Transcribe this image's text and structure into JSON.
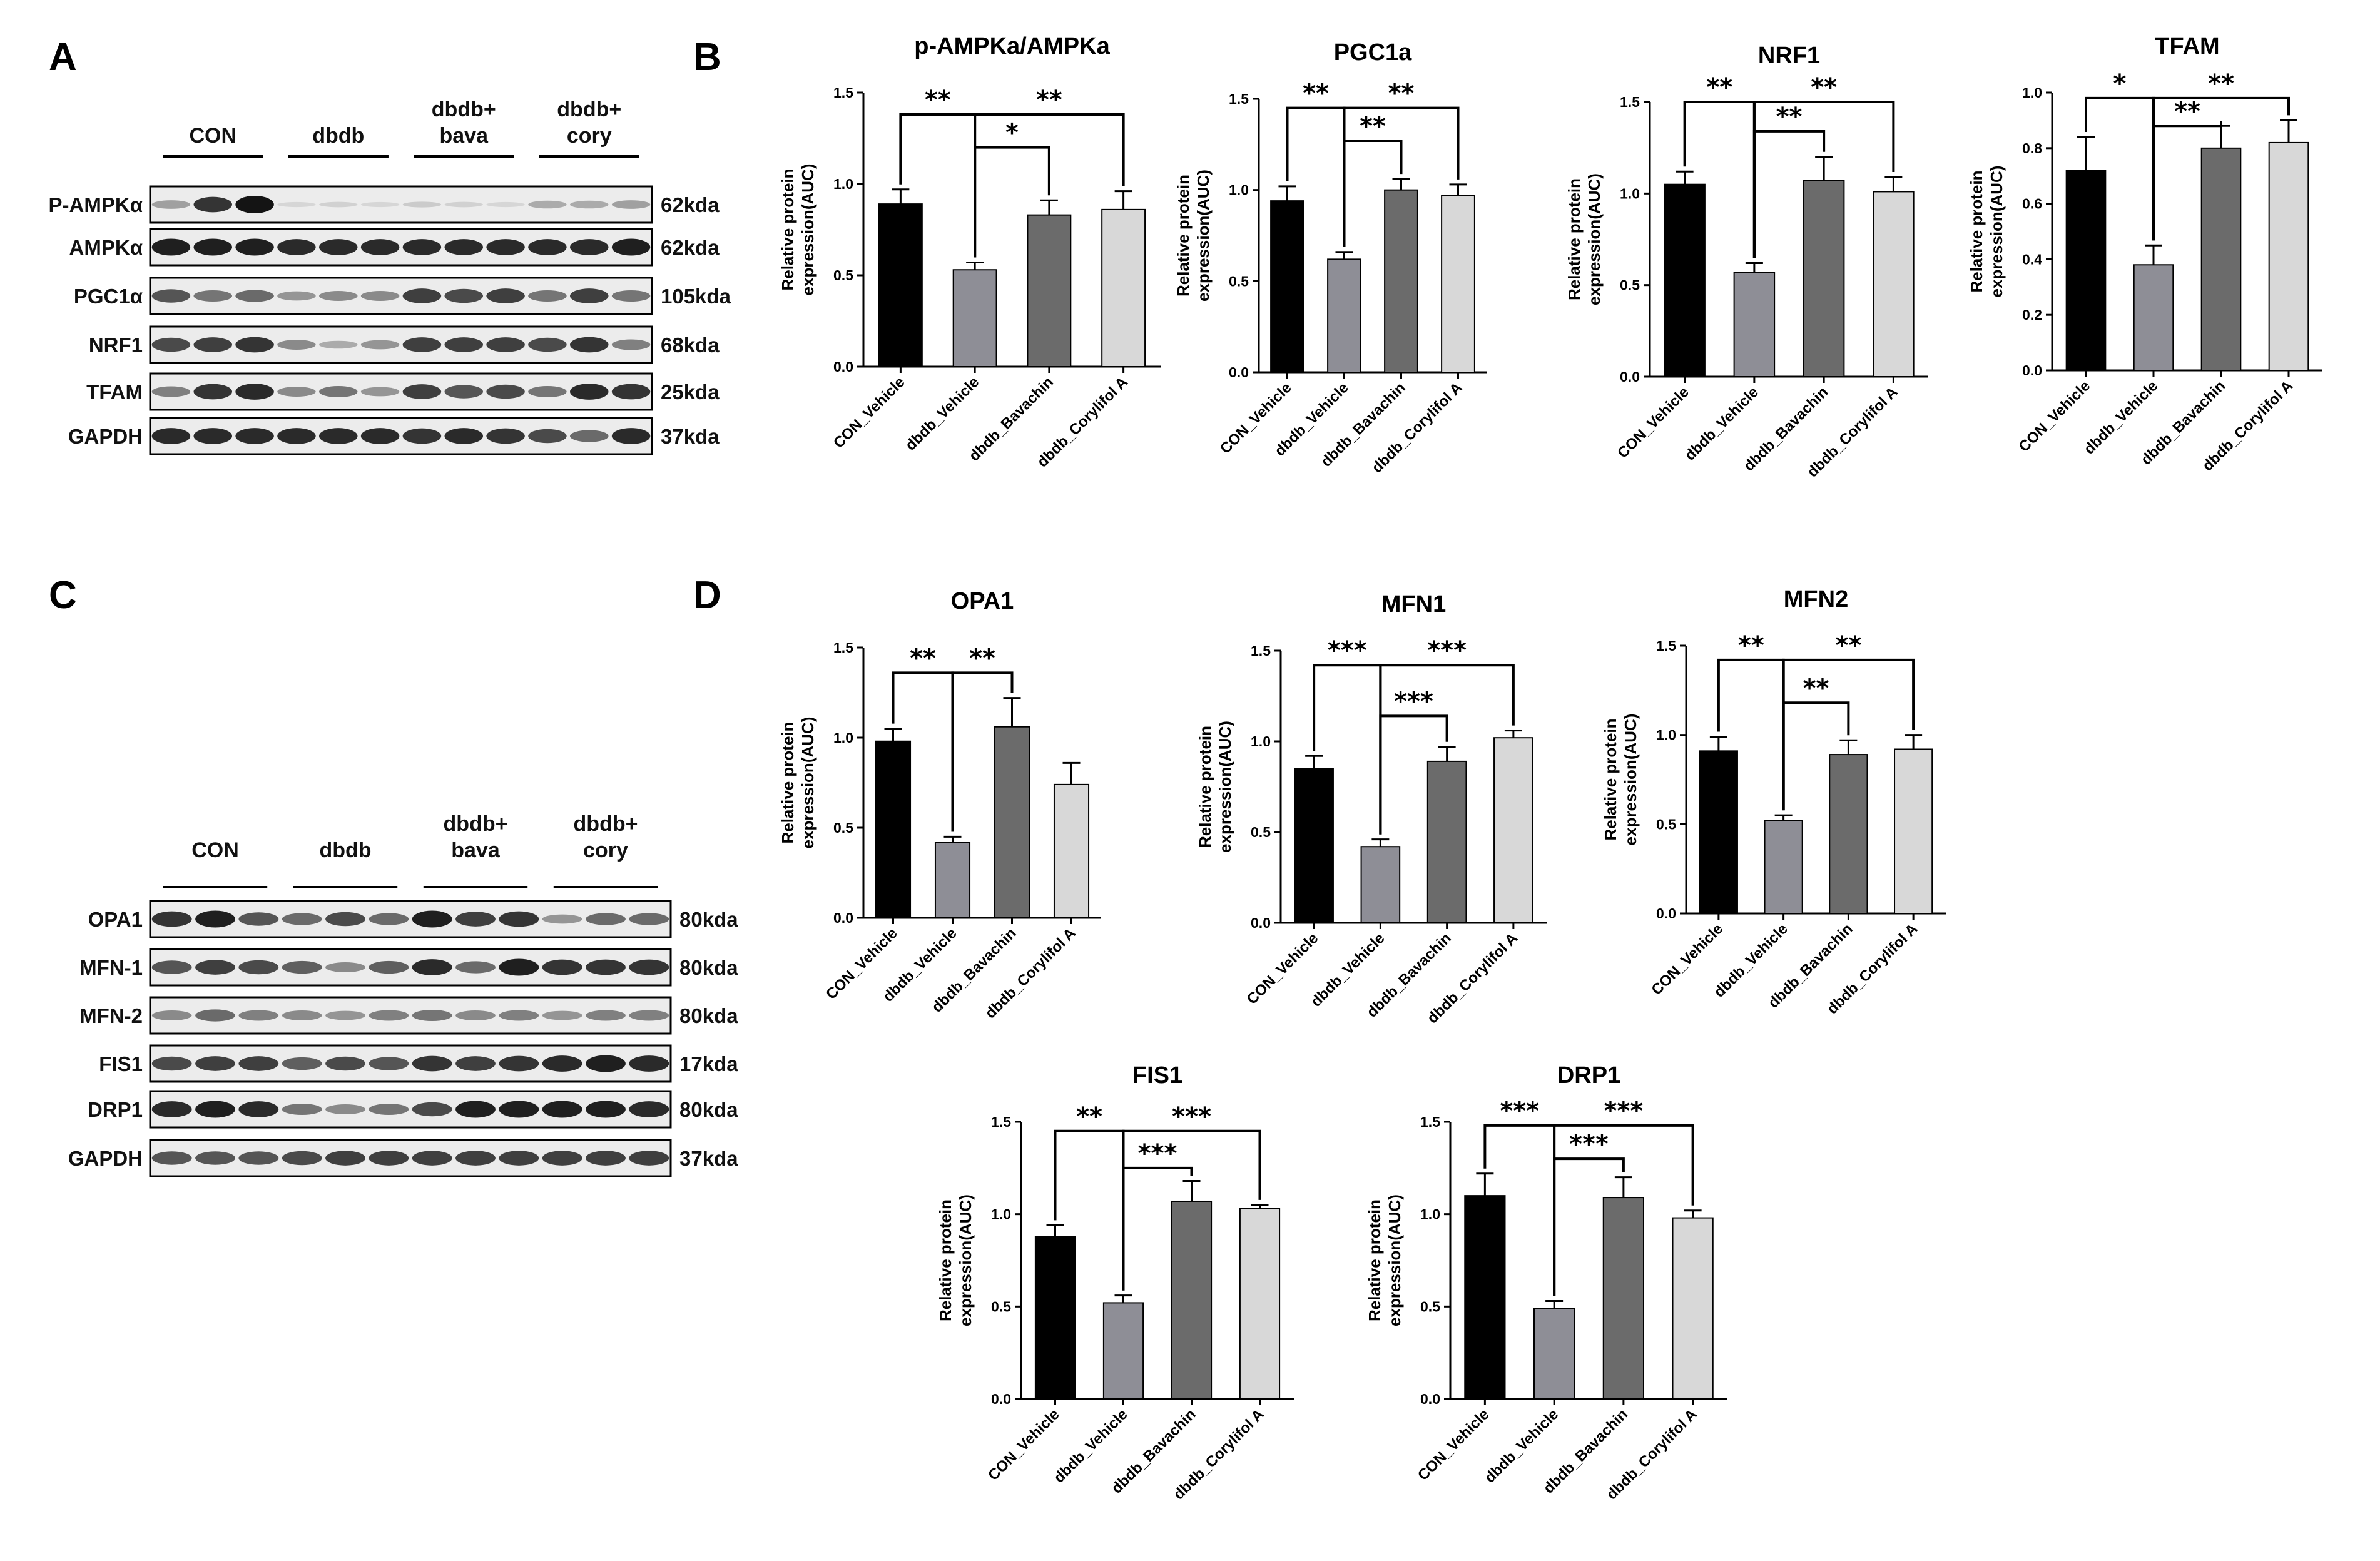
{
  "panel_labels": {
    "a": "A",
    "b": "B",
    "c": "C",
    "d": "D"
  },
  "blot_top": {
    "groups": [
      "CON",
      "dbdb",
      "dbdb+\nbava",
      "dbdb+\ncory"
    ],
    "rows": [
      {
        "protein": "P-AMPKα",
        "size": "62kda",
        "intensity": [
          0.35,
          0.85,
          1.0,
          0.1,
          0.12,
          0.1,
          0.15,
          0.12,
          0.1,
          0.3,
          0.3,
          0.35
        ]
      },
      {
        "protein": "AMPKα",
        "size": "62kda",
        "intensity": [
          0.95,
          0.95,
          0.95,
          0.9,
          0.9,
          0.9,
          0.9,
          0.9,
          0.9,
          0.9,
          0.9,
          0.95
        ]
      },
      {
        "protein": "PGC1α",
        "size": "105kda",
        "intensity": [
          0.7,
          0.55,
          0.6,
          0.4,
          0.45,
          0.45,
          0.8,
          0.75,
          0.8,
          0.55,
          0.8,
          0.55
        ]
      },
      {
        "protein": "NRF1",
        "size": "68kda",
        "intensity": [
          0.75,
          0.8,
          0.85,
          0.45,
          0.3,
          0.4,
          0.8,
          0.8,
          0.8,
          0.75,
          0.85,
          0.5
        ]
      },
      {
        "protein": "TFAM",
        "size": "25kda",
        "intensity": [
          0.5,
          0.85,
          0.9,
          0.45,
          0.55,
          0.4,
          0.8,
          0.7,
          0.75,
          0.55,
          0.9,
          0.85
        ]
      },
      {
        "protein": "GAPDH",
        "size": "37kda",
        "intensity": [
          0.9,
          0.9,
          0.9,
          0.9,
          0.9,
          0.9,
          0.85,
          0.9,
          0.85,
          0.75,
          0.6,
          0.9
        ]
      }
    ]
  },
  "blot_bottom": {
    "groups": [
      "CON",
      "dbdb",
      "dbdb+\nbava",
      "dbdb+\ncory"
    ],
    "rows": [
      {
        "protein": "OPA1",
        "size": "80kda",
        "intensity": [
          0.85,
          0.95,
          0.7,
          0.6,
          0.75,
          0.6,
          0.95,
          0.8,
          0.85,
          0.4,
          0.6,
          0.6
        ]
      },
      {
        "protein": "MFN-1",
        "size": "80kda",
        "intensity": [
          0.7,
          0.8,
          0.75,
          0.65,
          0.45,
          0.65,
          0.9,
          0.6,
          0.95,
          0.85,
          0.85,
          0.85
        ]
      },
      {
        "protein": "MFN-2",
        "size": "80kda",
        "intensity": [
          0.45,
          0.6,
          0.5,
          0.45,
          0.4,
          0.5,
          0.55,
          0.45,
          0.5,
          0.4,
          0.5,
          0.5
        ]
      },
      {
        "protein": "FIS1",
        "size": "17kda",
        "intensity": [
          0.75,
          0.8,
          0.8,
          0.65,
          0.75,
          0.7,
          0.85,
          0.8,
          0.85,
          0.9,
          0.95,
          0.9
        ]
      },
      {
        "protein": "DRP1",
        "size": "80kda",
        "intensity": [
          0.9,
          0.95,
          0.9,
          0.55,
          0.45,
          0.55,
          0.75,
          0.95,
          0.95,
          0.95,
          0.95,
          0.9
        ]
      },
      {
        "protein": "GAPDH",
        "size": "37kda",
        "intensity": [
          0.7,
          0.7,
          0.7,
          0.75,
          0.8,
          0.8,
          0.8,
          0.8,
          0.8,
          0.8,
          0.8,
          0.8
        ]
      }
    ]
  },
  "common": {
    "categories": [
      "CON_Vehicle",
      "dbdb_Vehicle",
      "dbdb_Bavachin",
      "dbdb_Corylifol A"
    ],
    "ylabel": "Relative protein\nexpression(AUC)",
    "bar_colors": [
      "#000000",
      "#8e8e96",
      "#6b6b6b",
      "#d8d8d8"
    ]
  },
  "chart_data": [
    {
      "type": "bar",
      "title": "p-AMPKa/AMPKa",
      "values": [
        0.89,
        0.53,
        0.83,
        0.86
      ],
      "errors": [
        0.08,
        0.04,
        0.08,
        0.1
      ],
      "ylim": [
        0,
        1.5
      ],
      "yticks": [
        "0.0",
        "0.5",
        "1.0",
        "1.5"
      ],
      "sig": [
        {
          "from": 0,
          "to": 1,
          "label": "**",
          "level": 1.38
        },
        {
          "from": 1,
          "to": 3,
          "label": "**",
          "level": 1.38
        },
        {
          "from": 1,
          "to": 2,
          "label": "*",
          "level": 1.2
        }
      ]
    },
    {
      "type": "bar",
      "title": "PGC1a",
      "values": [
        0.94,
        0.62,
        1.0,
        0.97
      ],
      "errors": [
        0.08,
        0.04,
        0.06,
        0.06
      ],
      "ylim": [
        0,
        1.5
      ],
      "yticks": [
        "0.0",
        "0.5",
        "1.0",
        "1.5"
      ],
      "sig": [
        {
          "from": 0,
          "to": 1,
          "label": "**",
          "level": 1.45
        },
        {
          "from": 1,
          "to": 3,
          "label": "**",
          "level": 1.45
        },
        {
          "from": 1,
          "to": 2,
          "label": "**",
          "level": 1.27
        }
      ]
    },
    {
      "type": "bar",
      "title": "NRF1",
      "values": [
        1.05,
        0.57,
        1.07,
        1.01
      ],
      "errors": [
        0.07,
        0.05,
        0.13,
        0.08
      ],
      "ylim": [
        0,
        1.5
      ],
      "yticks": [
        "0.0",
        "0.5",
        "1.0",
        "1.5"
      ],
      "sig": [
        {
          "from": 0,
          "to": 1,
          "label": "**",
          "level": 1.5
        },
        {
          "from": 1,
          "to": 3,
          "label": "**",
          "level": 1.5
        },
        {
          "from": 1,
          "to": 2,
          "label": "**",
          "level": 1.34
        }
      ]
    },
    {
      "type": "bar",
      "title": "TFAM",
      "values": [
        0.72,
        0.38,
        0.8,
        0.82
      ],
      "errors": [
        0.12,
        0.07,
        0.08,
        0.08
      ],
      "ylim": [
        0,
        1.0
      ],
      "yticks": [
        "0.0",
        "0.2",
        "0.4",
        "0.6",
        "0.8",
        "1.0"
      ],
      "sig": [
        {
          "from": 0,
          "to": 1,
          "label": "*",
          "level": 0.98
        },
        {
          "from": 1,
          "to": 3,
          "label": "**",
          "level": 0.98
        },
        {
          "from": 1,
          "to": 2,
          "label": "**",
          "level": 0.88
        }
      ]
    },
    {
      "type": "bar",
      "title": "OPA1",
      "values": [
        0.98,
        0.42,
        1.06,
        0.74
      ],
      "errors": [
        0.07,
        0.03,
        0.16,
        0.12
      ],
      "ylim": [
        0,
        1.5
      ],
      "yticks": [
        "0.0",
        "0.5",
        "1.0",
        "1.5"
      ],
      "sig": [
        {
          "from": 0,
          "to": 1,
          "label": "**",
          "level": 1.36
        },
        {
          "from": 1,
          "to": 2,
          "label": "**",
          "level": 1.36
        }
      ]
    },
    {
      "type": "bar",
      "title": "MFN1",
      "values": [
        0.85,
        0.42,
        0.89,
        1.02
      ],
      "errors": [
        0.07,
        0.04,
        0.08,
        0.04
      ],
      "ylim": [
        0,
        1.5
      ],
      "yticks": [
        "0.0",
        "0.5",
        "1.0",
        "1.5"
      ],
      "sig": [
        {
          "from": 0,
          "to": 1,
          "label": "***",
          "level": 1.42
        },
        {
          "from": 1,
          "to": 3,
          "label": "***",
          "level": 1.42
        },
        {
          "from": 1,
          "to": 2,
          "label": "***",
          "level": 1.14
        }
      ]
    },
    {
      "type": "bar",
      "title": "MFN2",
      "values": [
        0.91,
        0.52,
        0.89,
        0.92
      ],
      "errors": [
        0.08,
        0.03,
        0.08,
        0.08
      ],
      "ylim": [
        0,
        1.5
      ],
      "yticks": [
        "0.0",
        "0.5",
        "1.0",
        "1.5"
      ],
      "sig": [
        {
          "from": 0,
          "to": 1,
          "label": "**",
          "level": 1.42
        },
        {
          "from": 1,
          "to": 3,
          "label": "**",
          "level": 1.42
        },
        {
          "from": 1,
          "to": 2,
          "label": "**",
          "level": 1.18
        }
      ]
    },
    {
      "type": "bar",
      "title": "FIS1",
      "values": [
        0.88,
        0.52,
        1.07,
        1.03
      ],
      "errors": [
        0.06,
        0.04,
        0.11,
        0.02
      ],
      "ylim": [
        0,
        1.5
      ],
      "yticks": [
        "0.0",
        "0.5",
        "1.0",
        "1.5"
      ],
      "sig": [
        {
          "from": 0,
          "to": 1,
          "label": "**",
          "level": 1.45
        },
        {
          "from": 1,
          "to": 3,
          "label": "***",
          "level": 1.45
        },
        {
          "from": 1,
          "to": 2,
          "label": "***",
          "level": 1.25
        }
      ]
    },
    {
      "type": "bar",
      "title": "DRP1",
      "values": [
        1.1,
        0.49,
        1.09,
        0.98
      ],
      "errors": [
        0.12,
        0.04,
        0.11,
        0.04
      ],
      "ylim": [
        0,
        1.5
      ],
      "yticks": [
        "0.0",
        "0.5",
        "1.0",
        "1.5"
      ],
      "sig": [
        {
          "from": 0,
          "to": 1,
          "label": "***",
          "level": 1.48
        },
        {
          "from": 1,
          "to": 3,
          "label": "***",
          "level": 1.48
        },
        {
          "from": 1,
          "to": 2,
          "label": "***",
          "level": 1.3
        }
      ]
    }
  ]
}
